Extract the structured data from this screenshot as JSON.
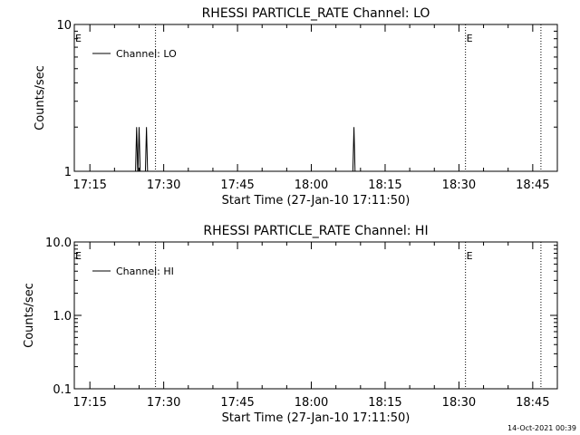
{
  "footer": {
    "timestamp": "14-Oct-2021 00:39"
  },
  "chart_data": [
    {
      "type": "line",
      "title": "RHESSI PARTICLE_RATE Channel: LO",
      "xlabel": "Start Time (27-Jan-10 17:11:50)",
      "ylabel": "Counts/sec",
      "yscale": "log",
      "ylim": [
        1,
        10
      ],
      "ytick_values": [
        1,
        10
      ],
      "ytick_labels": [
        "1",
        "10"
      ],
      "xlim": [
        "17:11:50",
        "18:50:00"
      ],
      "xticks": [
        "17:15",
        "17:30",
        "17:45",
        "18:00",
        "18:15",
        "18:30",
        "18:45"
      ],
      "legend": {
        "placement": "top-left",
        "entries": [
          "Channel: LO"
        ]
      },
      "eclipse_markers": [
        {
          "time": "17:11:50",
          "label": "E"
        },
        {
          "time": "18:31:20",
          "label": "E"
        }
      ],
      "boundary_lines": [
        "17:28:20",
        "18:31:20",
        "18:46:40"
      ],
      "series": [
        {
          "name": "Channel: LO",
          "points": [
            {
              "x": "17:24:30",
              "y": 2
            },
            {
              "x": "17:25:00",
              "y": 2
            },
            {
              "x": "17:26:30",
              "y": 2
            },
            {
              "x": "18:08:40",
              "y": 2
            }
          ]
        }
      ]
    },
    {
      "type": "line",
      "title": "RHESSI PARTICLE_RATE Channel: HI",
      "xlabel": "Start Time (27-Jan-10 17:11:50)",
      "ylabel": "Counts/sec",
      "yscale": "log",
      "ylim": [
        0.1,
        10
      ],
      "ytick_values": [
        0.1,
        1,
        10
      ],
      "ytick_labels": [
        "0.1",
        "1.0",
        "10.0"
      ],
      "xlim": [
        "17:11:50",
        "18:50:00"
      ],
      "xticks": [
        "17:15",
        "17:30",
        "17:45",
        "18:00",
        "18:15",
        "18:30",
        "18:45"
      ],
      "legend": {
        "placement": "top-left",
        "entries": [
          "Channel: HI"
        ]
      },
      "eclipse_markers": [
        {
          "time": "17:11:50",
          "label": "E"
        },
        {
          "time": "18:31:20",
          "label": "E"
        }
      ],
      "boundary_lines": [
        "17:28:20",
        "18:31:20",
        "18:46:40"
      ],
      "series": [
        {
          "name": "Channel: HI",
          "points": []
        }
      ]
    }
  ]
}
